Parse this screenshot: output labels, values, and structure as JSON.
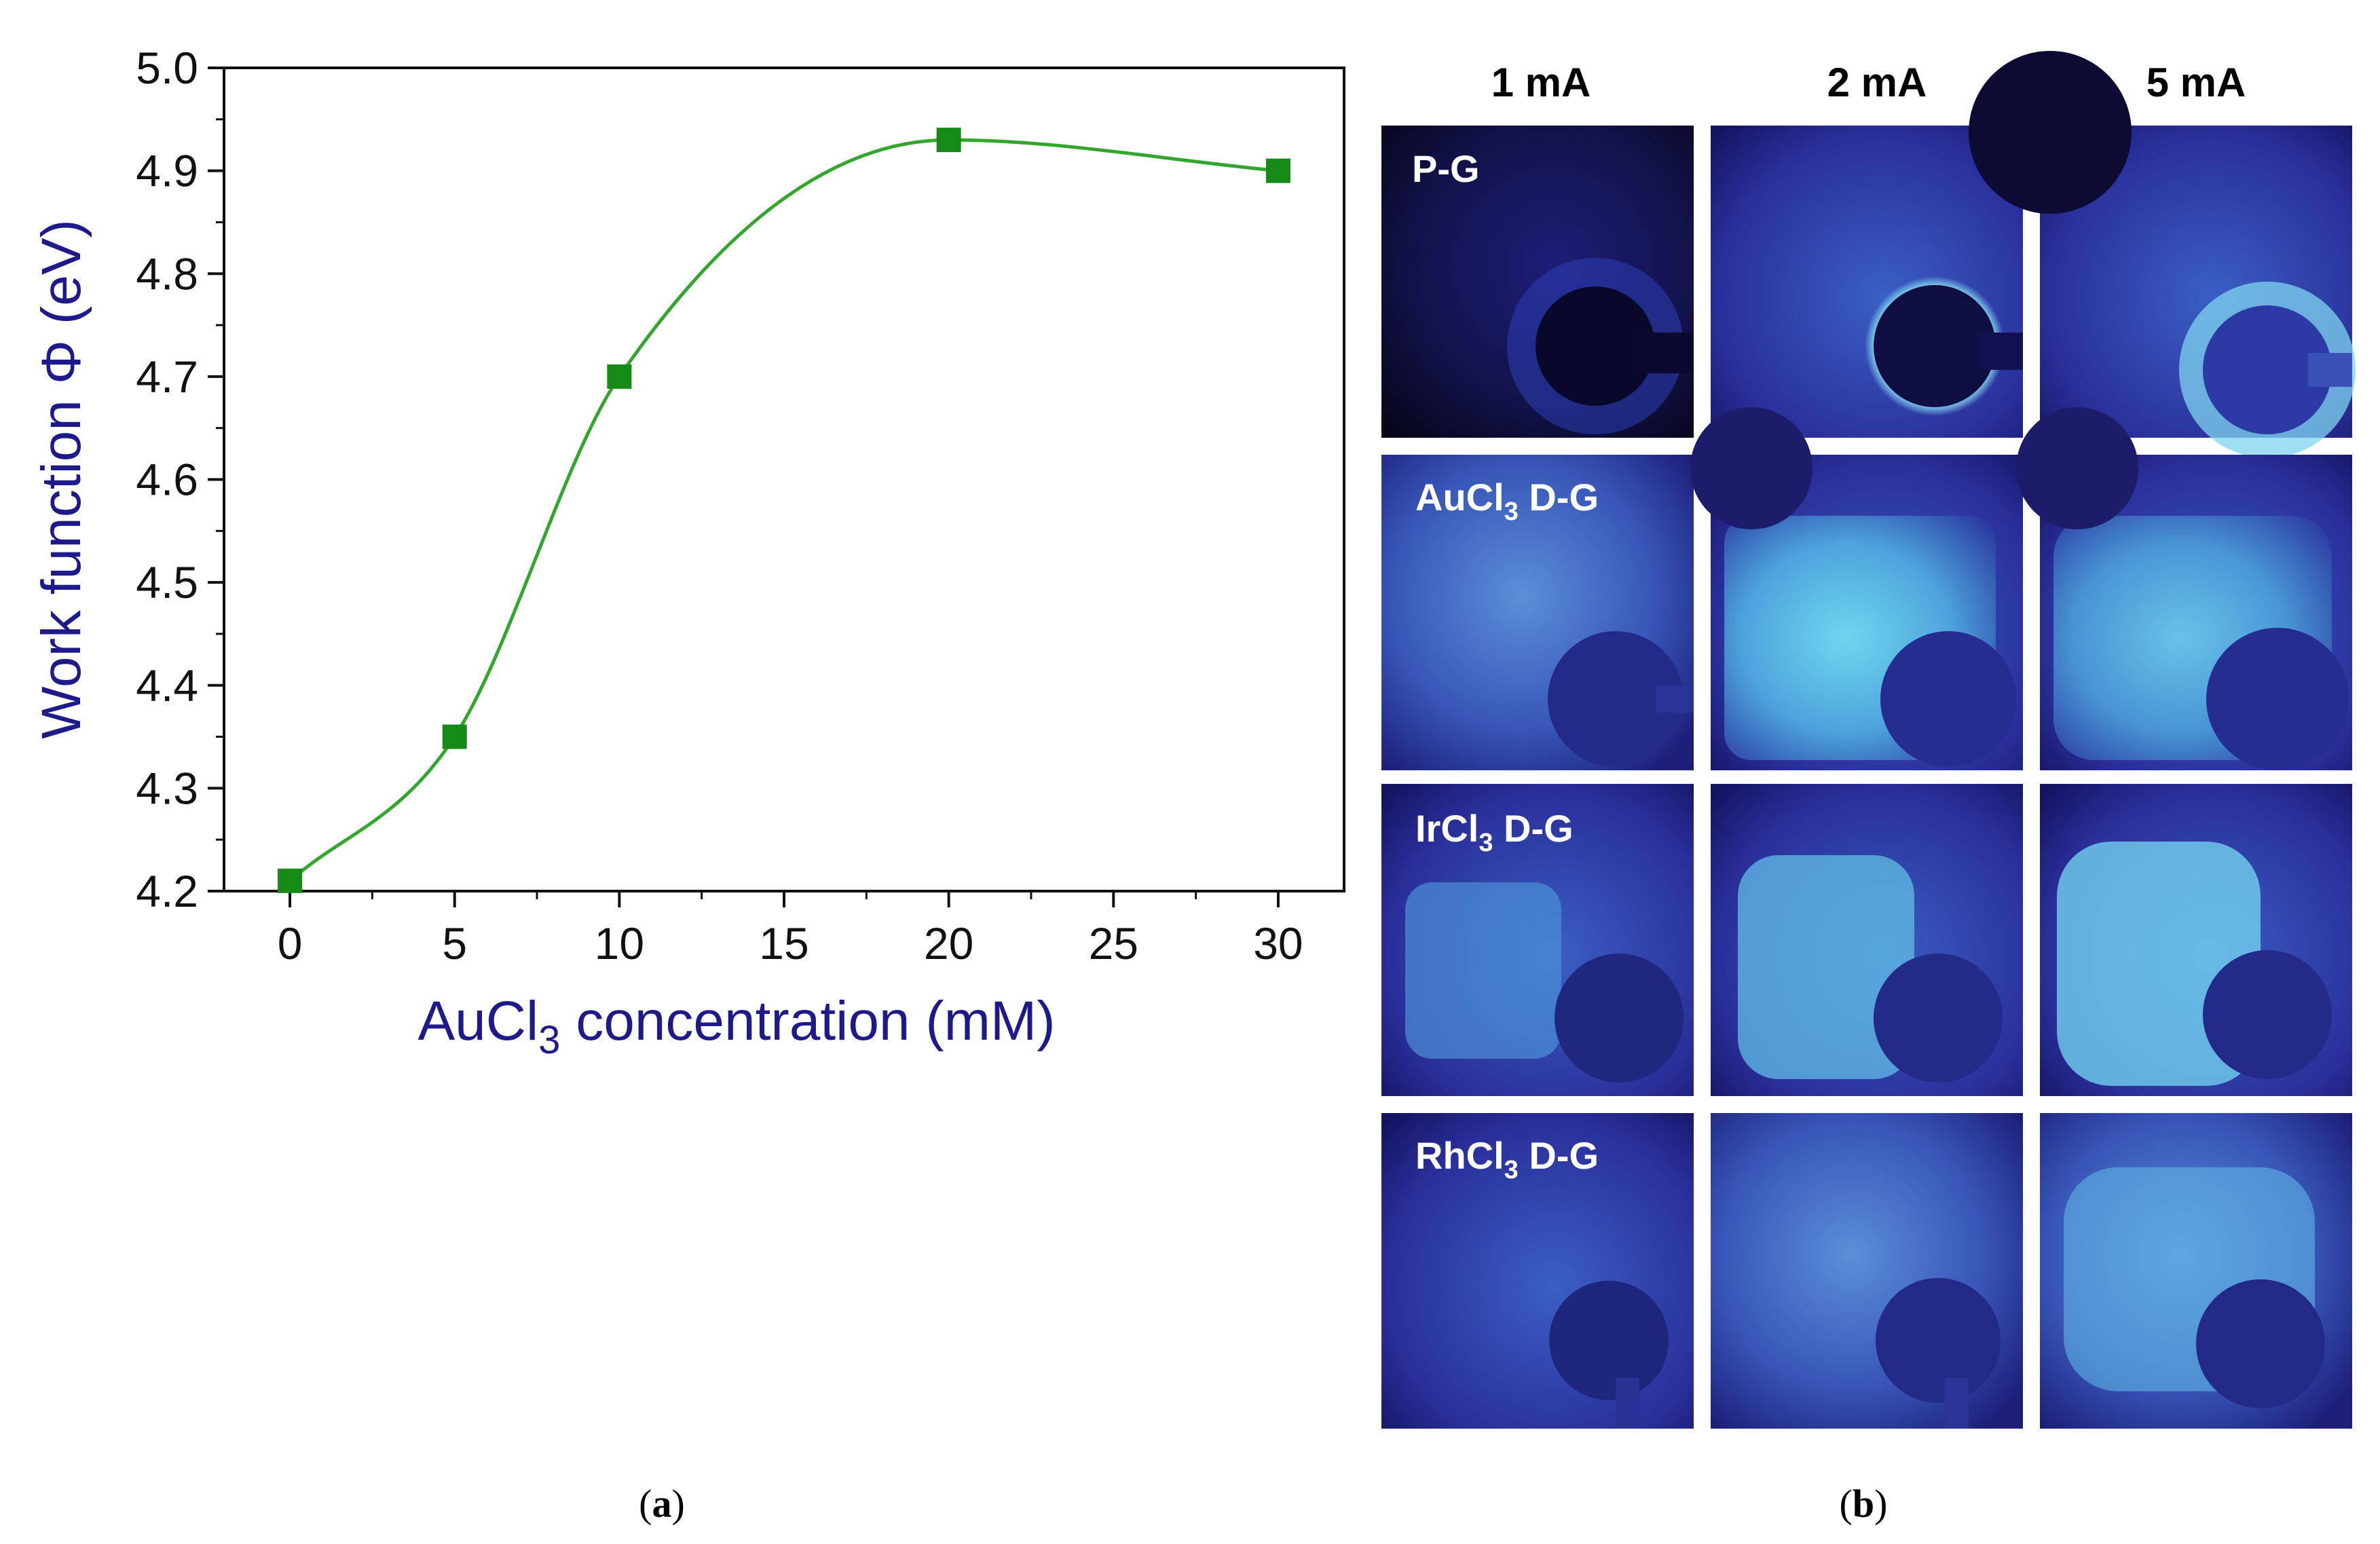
{
  "chart_data": {
    "type": "scatter",
    "title": "",
    "xlabel": "AuCl3 concentration (mM)",
    "xlabel_main": "AuCl",
    "xlabel_sub": "3",
    "xlabel_rest": " concentration (mM)",
    "ylabel": "Work function Φ (eV)",
    "xlim": [
      -2,
      32
    ],
    "ylim": [
      4.2,
      5.0
    ],
    "xticks": [
      "0",
      "5",
      "10",
      "15",
      "20",
      "25",
      "30"
    ],
    "yticks": [
      "4.2",
      "4.3",
      "4.4",
      "4.5",
      "4.6",
      "4.7",
      "4.8",
      "4.9",
      "5.0"
    ],
    "series": [
      {
        "name": "Work function",
        "x": [
          0,
          5,
          10,
          20,
          30
        ],
        "y": [
          4.21,
          4.35,
          4.7,
          4.93,
          4.9
        ]
      }
    ],
    "grid": false,
    "colors": {
      "marker": "#168a16",
      "line": "#33a62d",
      "axis_title": "#1e1a8c"
    }
  },
  "panel_b": {
    "columns": [
      "1 mA",
      "2 mA",
      "5 mA"
    ],
    "rows": [
      {
        "label_main": "P-G",
        "label_sub": "",
        "label_rest": ""
      },
      {
        "label_main": "AuCl",
        "label_sub": "3",
        "label_rest": " D-G"
      },
      {
        "label_main": "IrCl",
        "label_sub": "3",
        "label_rest": " D-G"
      },
      {
        "label_main": "RhCl",
        "label_sub": "3",
        "label_rest": " D-G"
      }
    ]
  },
  "captions": {
    "a": {
      "open": "(",
      "letter": "a",
      "close": ")"
    },
    "b": {
      "open": "(",
      "letter": "b",
      "close": ")"
    }
  }
}
